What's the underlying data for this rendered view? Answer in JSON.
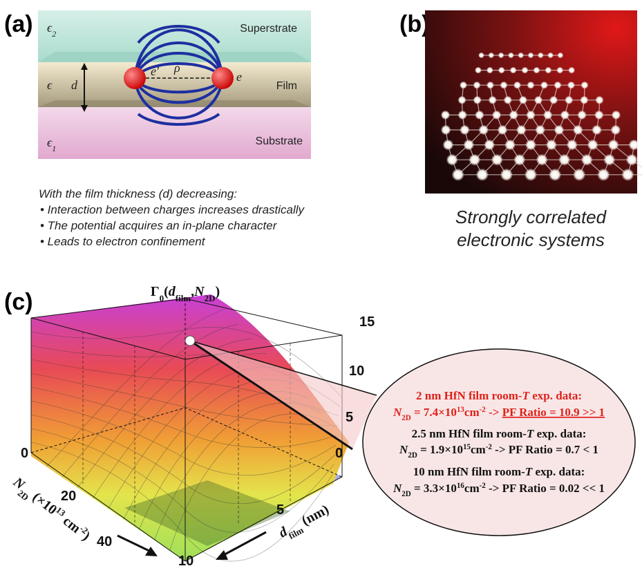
{
  "panel_a": {
    "label": "(a)",
    "superstrate": "Superstrate",
    "film": "Film",
    "substrate": "Substrate",
    "epsilon_2": [
      "ϵ",
      "2"
    ],
    "epsilon": "ϵ",
    "epsilon_1": [
      "ϵ",
      "1"
    ],
    "thickness": "d",
    "charge_left": "e′",
    "charge_right": "e",
    "distance": "ρ",
    "intro": "With the film thickness (d) decreasing:",
    "bullets": [
      "•  Interaction between charges increases drastically",
      "•  The potential acquires an in-plane character",
      "•  Leads to electron confinement"
    ]
  },
  "panel_b": {
    "label": "(b)",
    "caption": [
      "Strongly correlated",
      "electronic systems"
    ]
  },
  "panel_c": {
    "label": "(c)",
    "z_title": [
      "Γ",
      "0",
      "(",
      "d",
      "film",
      ",",
      "N",
      "2D",
      ")"
    ],
    "z_ticks": [
      "15",
      "10",
      "5"
    ],
    "n_title": [
      "N",
      "2D",
      " (×10",
      "13",
      " cm",
      "-2",
      ")"
    ],
    "n_ticks": [
      "0",
      "20",
      "40"
    ],
    "d_title": [
      "d",
      "film",
      " (nm)"
    ],
    "d_ticks": [
      "0",
      "5",
      "10"
    ],
    "callout": [
      {
        "heading": [
          "2 nm HfN film room-",
          "T",
          " exp. data:"
        ],
        "result": [
          "N",
          "2D",
          " = 7.4×10",
          "13",
          "cm",
          "-2",
          " -> ",
          "PF Ratio = 10.9 >> 1"
        ]
      },
      {
        "heading": [
          "2.5 nm HfN film room-",
          "T",
          " exp. data:"
        ],
        "result": [
          "N",
          "2D",
          " = 1.9×10",
          "15",
          "cm",
          "-2",
          " -> PF Ratio = 0.7 < 1"
        ]
      },
      {
        "heading": [
          "10 nm HfN film room-",
          "T",
          " exp. data:"
        ],
        "result": [
          "N",
          "2D",
          " = 3.3×10",
          "16",
          "cm",
          "-2",
          " -> PF Ratio = 0.02 << 1"
        ]
      }
    ]
  }
}
